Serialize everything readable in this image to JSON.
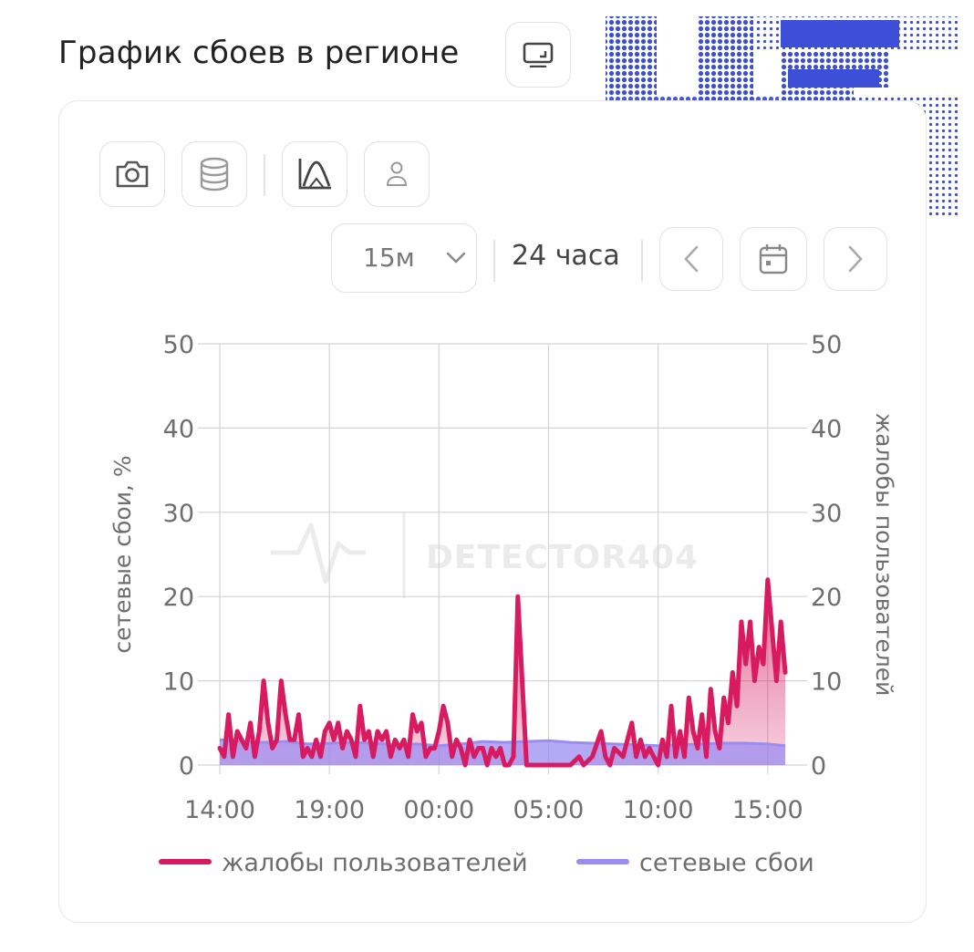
{
  "header": {
    "title": "График сбоев в регионе"
  },
  "icons": {
    "screen": "monitor-icon",
    "camera": "camera-icon",
    "database": "database-icon",
    "chart_type": "area-chart-icon",
    "user": "user-icon",
    "prev": "chevron-left-icon",
    "calendar": "calendar-icon",
    "next": "chevron-right-icon"
  },
  "toolbar": {
    "interval": "15м",
    "range": "24 часа"
  },
  "colors": {
    "complaints": "#d81b60",
    "outages": "#9b8cf0",
    "grid": "#d4d4d4",
    "axis_text": "#6e6e6e"
  },
  "chart_data": {
    "type": "area",
    "watermark": "DETECTOR404",
    "xlabel": "",
    "ylabel_left": "сетевые сбои, %",
    "ylabel_right": "жалобы пользователей",
    "ylim": [
      0,
      50
    ],
    "yticks": [
      0,
      10,
      20,
      30,
      40,
      50
    ],
    "xlim": [
      0,
      25.8
    ],
    "xticks": [
      {
        "t": 0,
        "label": "14:00"
      },
      {
        "t": 5,
        "label": "19:00"
      },
      {
        "t": 10,
        "label": "00:00"
      },
      {
        "t": 15,
        "label": "05:00"
      },
      {
        "t": 20,
        "label": "10:00"
      },
      {
        "t": 25,
        "label": "15:00"
      }
    ],
    "legend_position": "bottom",
    "series": [
      {
        "name": "жалобы пользователей",
        "x": [
          0,
          0.2,
          0.4,
          0.6,
          0.8,
          1.0,
          1.2,
          1.4,
          1.6,
          1.8,
          2.0,
          2.2,
          2.4,
          2.6,
          2.8,
          3.0,
          3.2,
          3.4,
          3.6,
          3.8,
          4.0,
          4.2,
          4.4,
          4.6,
          4.8,
          5.0,
          5.2,
          5.4,
          5.6,
          5.8,
          6.0,
          6.2,
          6.4,
          6.6,
          6.8,
          7.0,
          7.2,
          7.4,
          7.6,
          7.8,
          8.0,
          8.2,
          8.4,
          8.6,
          8.8,
          9.0,
          9.2,
          9.4,
          9.6,
          9.8,
          10.0,
          10.2,
          10.4,
          10.6,
          10.8,
          11.0,
          11.2,
          11.4,
          11.6,
          11.8,
          12.0,
          12.2,
          12.4,
          12.6,
          12.8,
          13.0,
          13.2,
          13.4,
          13.6,
          14.0,
          15.0,
          16.0,
          16.4,
          16.6,
          17.0,
          17.4,
          17.6,
          17.8,
          18.0,
          18.4,
          18.8,
          19.0,
          19.2,
          19.4,
          19.6,
          20.0,
          20.2,
          20.4,
          20.6,
          20.8,
          21.0,
          21.2,
          21.4,
          21.6,
          21.8,
          22.0,
          22.2,
          22.4,
          22.6,
          22.8,
          23.0,
          23.2,
          23.4,
          23.6,
          23.8,
          24.0,
          24.2,
          24.4,
          24.6,
          24.8,
          25.0,
          25.2,
          25.4,
          25.6,
          25.8
        ],
        "y": [
          2,
          1,
          6,
          1,
          4,
          3,
          2,
          5,
          1,
          4,
          10,
          5,
          2,
          3,
          10,
          6,
          3,
          3,
          6,
          1,
          2,
          1,
          3,
          1,
          4,
          5,
          3,
          5,
          2,
          4,
          3,
          1,
          7,
          3,
          4,
          1,
          4,
          3,
          4,
          1,
          3,
          2,
          3,
          1,
          6,
          4,
          5,
          1,
          2,
          2,
          4,
          7,
          5,
          1,
          3,
          2,
          0,
          3,
          1,
          2,
          2,
          0,
          2,
          1,
          2,
          0,
          0,
          1,
          20,
          0,
          0,
          0,
          1,
          0,
          1,
          4,
          1,
          0,
          2,
          1,
          5,
          1,
          3,
          1,
          2,
          0,
          3,
          1,
          7,
          1,
          4,
          1,
          8,
          4,
          2,
          6,
          1,
          9,
          4,
          2,
          8,
          5,
          11,
          7,
          17,
          12,
          17,
          10,
          14,
          12,
          22,
          16,
          10,
          17,
          11
        ],
        "color": "#d81b60"
      },
      {
        "name": "сетевые сбои",
        "x": [
          0,
          1,
          2,
          3,
          4,
          5,
          6,
          7,
          8,
          9,
          10,
          11,
          12,
          13,
          14,
          15,
          16,
          17,
          18,
          19,
          20,
          21,
          22,
          23,
          24,
          25,
          25.8
        ],
        "y": [
          3,
          2.8,
          2.7,
          2.8,
          2.5,
          2.6,
          2.7,
          2.6,
          2.4,
          2.5,
          2.3,
          2.5,
          2.8,
          2.7,
          2.8,
          2.9,
          2.7,
          2.6,
          2.5,
          2.4,
          2.3,
          2.4,
          2.5,
          2.6,
          2.6,
          2.5,
          2.3
        ],
        "color": "#9b8cf0"
      }
    ]
  }
}
